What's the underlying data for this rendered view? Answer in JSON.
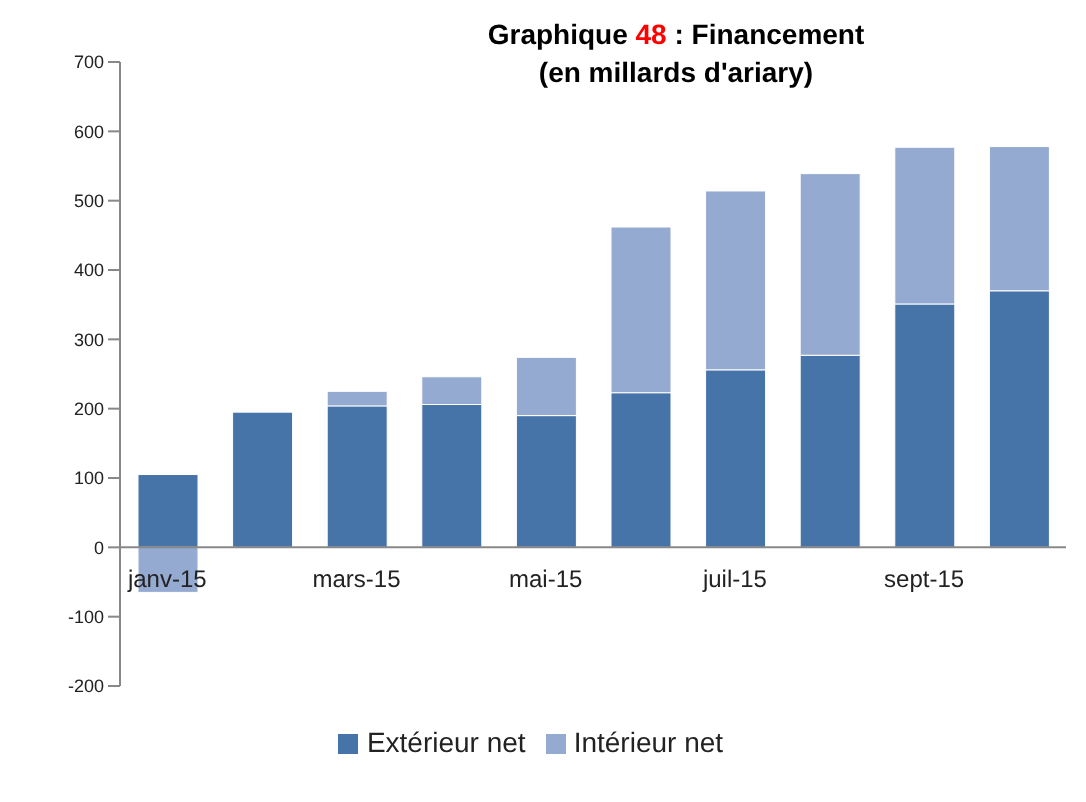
{
  "chart_data": {
    "type": "bar",
    "title": "Graphique 48 : Financement\n(en millards d'ariary)",
    "categories": [
      "janv-15",
      null,
      "mars-15",
      null,
      "mai-15",
      null,
      "juil-15",
      null,
      "sept-15",
      null
    ],
    "stacked": true,
    "series": [
      {
        "name": "Extérieur net",
        "color": "#4673a8",
        "values": [
          105,
          195,
          204,
          206,
          190,
          223,
          256,
          277,
          351,
          370
        ]
      },
      {
        "name": "Intérieur net",
        "color": "#95aad1",
        "values": [
          -65,
          null,
          21,
          40,
          84,
          239,
          258,
          262,
          226,
          208
        ]
      }
    ],
    "ylim": [
      -200,
      700
    ],
    "yticks": [
      -200,
      -100,
      0,
      100,
      200,
      300,
      400,
      500,
      600,
      700
    ],
    "legend": "bottom"
  }
}
